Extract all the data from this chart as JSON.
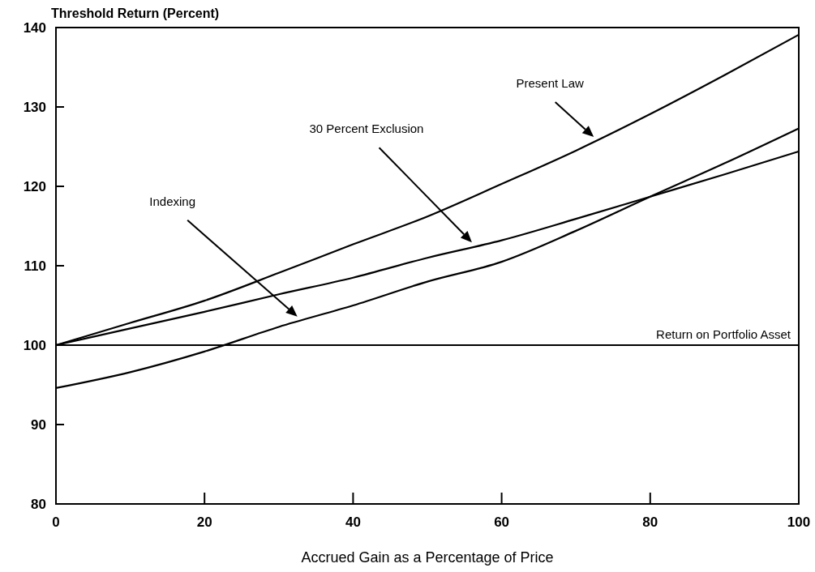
{
  "chart_data": {
    "type": "line",
    "ylabel": "Threshold Return (Percent)",
    "xlabel": "Accrued Gain as a Percentage of Price",
    "x": [
      0,
      10,
      20,
      30,
      40,
      50,
      60,
      70,
      80,
      90,
      100
    ],
    "series": [
      {
        "color": "#000000",
        "values": [
          100,
          102.8,
          105.6,
          109.1,
          112.7,
          116.2,
          120.3,
          124.5,
          129.1,
          134.0,
          139.1
        ]
      },
      {
        "color": "#000000",
        "values": [
          100,
          102.1,
          104.2,
          106.4,
          108.5,
          111.0,
          113.2,
          115.9,
          118.7,
          121.5,
          124.4
        ]
      },
      {
        "color": "#000000",
        "values": [
          94.6,
          96.6,
          99.2,
          102.3,
          105.0,
          108.0,
          110.5,
          114.4,
          118.7,
          122.9,
          127.3
        ]
      }
    ],
    "xlim": [
      0,
      100
    ],
    "xticks": [
      0,
      20,
      40,
      60,
      80,
      100
    ],
    "ylim": [
      80,
      140
    ],
    "yticks": [
      80,
      90,
      100,
      110,
      120,
      130,
      140
    ],
    "grid": false,
    "marker": "none",
    "line_style": "solid",
    "ref_lines": [
      {
        "axis": "y",
        "value": 100,
        "label": "Return on Portfolio Asset",
        "color": "#000000"
      }
    ],
    "annotations": [
      "Present Law",
      "30 Percent Exclusion",
      "Indexing"
    ]
  }
}
